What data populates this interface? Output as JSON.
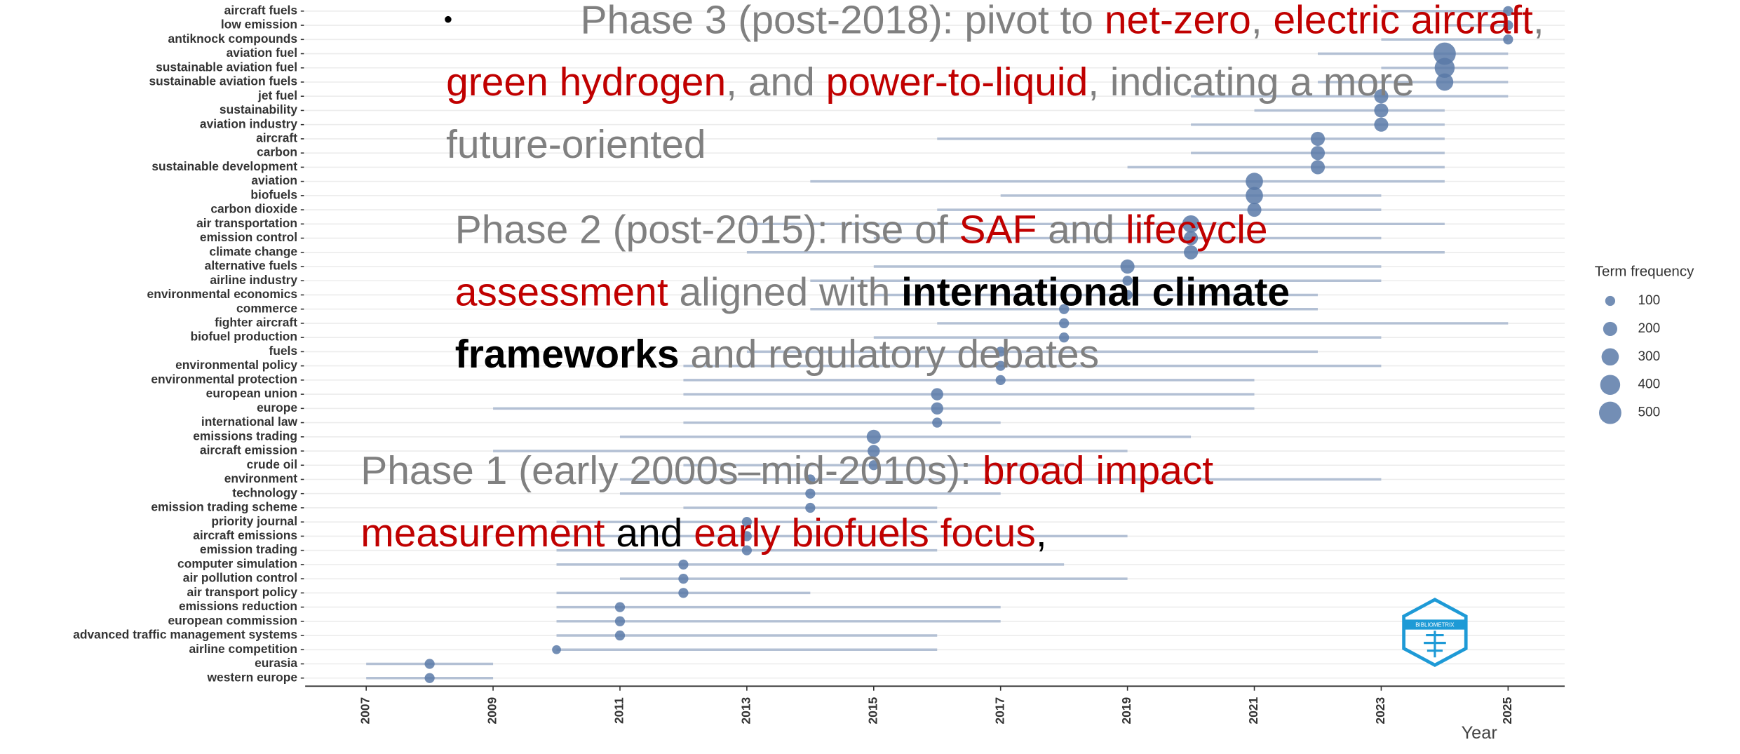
{
  "chart_data": {
    "type": "trend",
    "xlabel": "Year",
    "legend_title": "Term frequency",
    "legend_sizes": [
      100,
      200,
      300,
      400,
      500
    ],
    "xlim": [
      2007,
      2025
    ],
    "xticks": [
      2007,
      2009,
      2011,
      2013,
      2015,
      2017,
      2019,
      2021,
      2023,
      2025
    ],
    "dot_color": "#5b7aa8",
    "range_color": "#b3c0d4",
    "grid": true,
    "categories": [
      "aircraft fuels",
      "low emission",
      "antiknock compounds",
      "aviation fuel",
      "sustainable aviation fuel",
      "sustainable aviation fuels",
      "jet fuel",
      "sustainability",
      "aviation industry",
      "aircraft",
      "carbon",
      "sustainable development",
      "aviation",
      "biofuels",
      "carbon dioxide",
      "air transportation",
      "emission control",
      "climate change",
      "alternative fuels",
      "airline industry",
      "environmental economics",
      "commerce",
      "fighter aircraft",
      "biofuel production",
      "fuels",
      "environmental policy",
      "environmental protection",
      "european union",
      "europe",
      "international law",
      "emissions trading",
      "aircraft emission",
      "crude oil",
      "environment",
      "technology",
      "emission trading scheme",
      "priority journal",
      "aircraft emissions",
      "emission trading",
      "computer simulation",
      "air pollution control",
      "air transport policy",
      "emissions reduction",
      "european commission",
      "advanced traffic management systems",
      "airline competition",
      "eurasia",
      "western europe"
    ],
    "values": [
      2025,
      2025,
      2025,
      2024,
      2024,
      2024,
      2023,
      2023,
      2023,
      2022,
      2022,
      2022,
      2021,
      2021,
      2021,
      2020,
      2020,
      2020,
      2019,
      2019,
      2019,
      2018,
      2018,
      2018,
      2017,
      2017,
      2017,
      2016,
      2016,
      2016,
      2015,
      2015,
      2015,
      2014,
      2014,
      2014,
      2013,
      2013,
      2013,
      2012,
      2012,
      2012,
      2011,
      2011,
      2011,
      2010,
      2008,
      2008
    ],
    "range_start": [
      2023,
      2024,
      2023,
      2022,
      2023,
      2022,
      2020,
      2021,
      2020,
      2016,
      2020,
      2019,
      2014,
      2017,
      2016,
      2013,
      2015,
      2013,
      2015,
      2014,
      2015,
      2014,
      2016,
      2015,
      2013,
      2012,
      2012,
      2012,
      2009,
      2012,
      2011,
      2009,
      2012,
      2011,
      2011,
      2012,
      2010,
      2010,
      2010,
      2010,
      2011,
      2010,
      2010,
      2010,
      2010,
      2010,
      2007,
      2007
    ],
    "range_end": [
      2025,
      2025,
      2025,
      2025,
      2025,
      2025,
      2025,
      2024,
      2024,
      2024,
      2024,
      2024,
      2024,
      2023,
      2023,
      2024,
      2023,
      2024,
      2023,
      2023,
      2022,
      2022,
      2025,
      2023,
      2022,
      2023,
      2021,
      2021,
      2021,
      2017,
      2020,
      2019,
      2018,
      2023,
      2017,
      2016,
      2016,
      2019,
      2016,
      2018,
      2019,
      2014,
      2017,
      2017,
      2016,
      2016,
      2009,
      2009
    ],
    "sizes": [
      100,
      100,
      100,
      500,
      400,
      300,
      200,
      200,
      200,
      200,
      200,
      200,
      300,
      300,
      200,
      300,
      200,
      200,
      200,
      100,
      100,
      100,
      100,
      100,
      100,
      100,
      100,
      150,
      150,
      100,
      200,
      150,
      100,
      100,
      100,
      100,
      100,
      100,
      100,
      100,
      100,
      100,
      100,
      100,
      100,
      80,
      100,
      100
    ]
  },
  "logo_text": "BIBLIOMETRIX",
  "overlay": {
    "bullet": "•",
    "colors": {
      "gray": "#808080",
      "red": "#c00000",
      "black": "#000000"
    },
    "blocks": [
      [
        [
          {
            "text": "Phase 3 (post-2018): pivot to ",
            "color": "gray"
          },
          {
            "text": "net-zero",
            "color": "red"
          },
          {
            "text": ", ",
            "color": "gray"
          },
          {
            "text": "electric aircraft",
            "color": "red"
          },
          {
            "text": ",",
            "color": "gray"
          }
        ],
        [
          {
            "text": "green hydrogen",
            "color": "red"
          },
          {
            "text": ", and ",
            "color": "gray"
          },
          {
            "text": "power-to-liquid",
            "color": "red"
          },
          {
            "text": ", indicating a more",
            "color": "gray"
          }
        ],
        [
          {
            "text": "future-oriented",
            "color": "gray"
          }
        ]
      ],
      [
        [
          {
            "text": "Phase 2 (post-2015): rise of ",
            "color": "gray"
          },
          {
            "text": "SAF",
            "color": "red"
          },
          {
            "text": " and ",
            "color": "gray"
          },
          {
            "text": "lifecycle",
            "color": "red"
          }
        ],
        [
          {
            "text": "assessment",
            "color": "red"
          },
          {
            "text": " aligned with ",
            "color": "gray"
          },
          {
            "text": "international climate",
            "color": "black",
            "bold": true
          }
        ],
        [
          {
            "text": "frameworks",
            "color": "black",
            "bold": true
          },
          {
            "text": " and regulatory debates",
            "color": "gray"
          }
        ]
      ],
      [
        [
          {
            "text": "Phase 1 (early 2000s–mid-2010s): ",
            "color": "gray"
          },
          {
            "text": "broad impact",
            "color": "red"
          }
        ],
        [
          {
            "text": "measurement",
            "color": "red"
          },
          {
            "text": " and ",
            "color": "black"
          },
          {
            "text": "early biofuels focus",
            "color": "red"
          },
          {
            "text": ",",
            "color": "black"
          }
        ]
      ]
    ]
  }
}
